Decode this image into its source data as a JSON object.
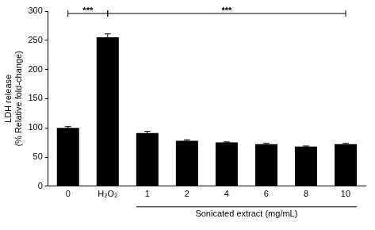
{
  "chart_data": {
    "type": "bar",
    "categories": [
      "0",
      "H₂O₂",
      "1",
      "2",
      "4",
      "6",
      "8",
      "10"
    ],
    "values": [
      100,
      255,
      91,
      78,
      75,
      72,
      68,
      72
    ],
    "errors": [
      2,
      6,
      3,
      1.5,
      1,
      1.5,
      1,
      1.5
    ],
    "color": "#000000",
    "y_label": [
      "LDH release",
      "(% Relative fold-change)"
    ],
    "ylim": [
      0,
      300
    ],
    "yticks": [
      0,
      50,
      100,
      150,
      200,
      250,
      300
    ],
    "grid": false,
    "annotations": [
      {
        "text": "***",
        "from": "0",
        "to": "H₂O₂"
      },
      {
        "text": "***",
        "from": "H₂O₂",
        "to": "10"
      }
    ],
    "group_label": {
      "text": "Sonicated extract (mg/mL)",
      "from": "1",
      "to": "10"
    }
  }
}
